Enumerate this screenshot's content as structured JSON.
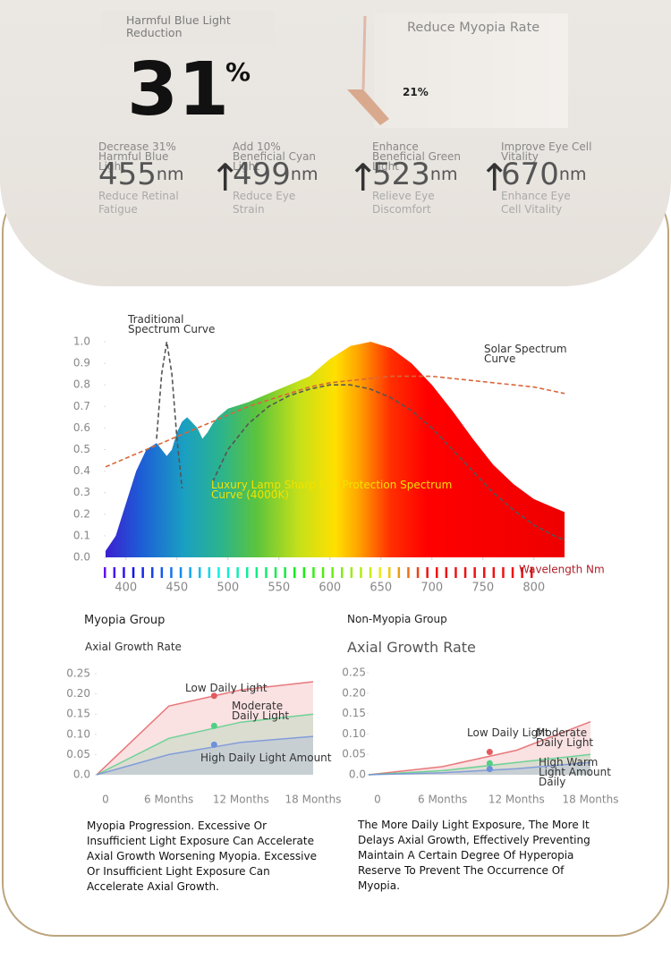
{
  "header": {
    "blue_light_label": "Harmful Blue Light Reduction",
    "blue_light_value": "31",
    "blue_light_unit": "%",
    "myopia_label": "Reduce Myopia Rate",
    "myopia_value": "21%",
    "wavelengths": [
      {
        "top": "Decrease 31% Harmful Blue Light",
        "value": "455",
        "unit": "nm",
        "bottom": "Reduce Retinal Fatigue"
      },
      {
        "top": "Add 10% Beneficial Cyan Light",
        "value": "499",
        "unit": "nm",
        "bottom": "Reduce Eye Strain"
      },
      {
        "top": "Enhance Beneficial Green Light",
        "value": "523",
        "unit": "nm",
        "bottom": "Relieve Eye Discomfort"
      },
      {
        "top": "Improve Eye Cell Vitality",
        "value": "670",
        "unit": "nm",
        "bottom": "Enhance Eye Cell Vitality"
      }
    ]
  },
  "chart_data": [
    {
      "type": "line",
      "x_label": "Wavelength Nm",
      "x": [
        380,
        390,
        400,
        410,
        420,
        430,
        435,
        440,
        445,
        450,
        455,
        460,
        470,
        475,
        480,
        485,
        490,
        500,
        520,
        540,
        560,
        580,
        600,
        620,
        640,
        660,
        680,
        700,
        720,
        740,
        760,
        780,
        800,
        820,
        830
      ],
      "xlim": [
        380,
        830
      ],
      "xticks": [
        400,
        450,
        500,
        550,
        600,
        650,
        700,
        750,
        800
      ],
      "ylim": [
        0,
        1
      ],
      "yticks": [
        {
          "value": 0,
          "label": "0.0"
        },
        0.1,
        0.2,
        0.3,
        0.4,
        0.5,
        0.6,
        0.7,
        0.8,
        0.9,
        {
          "value": 1,
          "label": "1.0"
        }
      ],
      "series": [
        {
          "name": "Luxury Lamp Sharp Eye Protection Spectrum Curve (4000K)",
          "color": "#f2e200",
          "fill": true,
          "values": [
            0.03,
            0.1,
            0.25,
            0.4,
            0.5,
            0.53,
            0.5,
            0.47,
            0.5,
            0.58,
            0.63,
            0.65,
            0.6,
            0.55,
            0.58,
            0.62,
            0.65,
            0.69,
            0.72,
            0.76,
            0.8,
            0.84,
            0.92,
            0.98,
            1.0,
            0.97,
            0.9,
            0.8,
            0.68,
            0.55,
            0.43,
            0.34,
            0.27,
            0.23,
            0.21
          ]
        },
        {
          "name": "Traditional Spectrum Curve",
          "color": "#555555",
          "dashed": true,
          "values": [
            null,
            null,
            null,
            null,
            null,
            0.55,
            0.85,
            1.0,
            0.85,
            0.55,
            0.32,
            null,
            null,
            null,
            null,
            0.35,
            0.4,
            0.5,
            0.62,
            0.7,
            0.75,
            0.78,
            0.8,
            0.8,
            0.78,
            0.74,
            0.68,
            0.6,
            0.5,
            0.4,
            0.3,
            0.22,
            0.15,
            0.1,
            0.08
          ]
        },
        {
          "name": "Solar Spectrum Curve",
          "color": "#d9663a",
          "dashed": true,
          "values": [
            0.42,
            0.44,
            0.46,
            0.48,
            0.5,
            0.52,
            0.53,
            0.54,
            0.55,
            0.56,
            0.57,
            0.58,
            0.6,
            0.61,
            0.62,
            0.63,
            0.64,
            0.66,
            0.7,
            0.73,
            0.76,
            0.79,
            0.81,
            0.82,
            0.83,
            0.84,
            0.84,
            0.84,
            0.83,
            0.82,
            0.81,
            0.8,
            0.79,
            0.77,
            0.76
          ]
        }
      ]
    },
    {
      "type": "line",
      "title": "Myopia Group",
      "y_label": "Axial Growth Rate",
      "categories": [
        "0",
        "6 Months",
        "12 Months",
        "18 Months"
      ],
      "ylim": [
        0,
        0.25
      ],
      "yticks": [
        {
          "value": 0,
          "label": "0.0"
        },
        0.05,
        {
          "value": 0.1,
          "label": "0.10"
        },
        0.15,
        {
          "value": 0.2,
          "label": "0.20"
        },
        0.25
      ],
      "series": [
        {
          "name": "Low Daily Light",
          "color": "#e25a5f",
          "values": [
            0,
            0.17,
            0.21,
            0.23
          ]
        },
        {
          "name": "Moderate Daily Light",
          "color": "#4fcf85",
          "values": [
            0,
            0.09,
            0.13,
            0.15
          ]
        },
        {
          "name": "High Daily Light Amount",
          "color": "#6f8fdc",
          "values": [
            0,
            0.05,
            0.08,
            0.095
          ]
        }
      ],
      "note": "Myopia Progression. Excessive Or Insufficient Light Exposure Can Accelerate Axial Growth Worsening Myopia. Excessive Or Insufficient Light Exposure Can Accelerate Axial Growth."
    },
    {
      "type": "line",
      "title": "Non-Myopia Group",
      "y_label": "Axial Growth Rate",
      "categories": [
        "0",
        "6 Months",
        "12 Months",
        "18 Months"
      ],
      "ylim": [
        0,
        0.25
      ],
      "yticks": [
        {
          "value": 0,
          "label": "0.0"
        },
        0.05,
        {
          "value": 0.1,
          "label": "0.10"
        },
        0.15,
        {
          "value": 0.2,
          "label": "0.20"
        },
        0.25
      ],
      "series": [
        {
          "name": "Low Daily Light",
          "color": "#e25a5f",
          "values": [
            0,
            0.02,
            0.06,
            0.13
          ]
        },
        {
          "name": "Moderate Daily Light",
          "color": "#4fcf85",
          "values": [
            0,
            0.01,
            0.03,
            0.05
          ]
        },
        {
          "name": "High Warm Light Amount Daily",
          "color": "#6f8fdc",
          "values": [
            0,
            0.005,
            0.015,
            0.03
          ]
        }
      ],
      "note": "The More Daily Light Exposure, The More It Delays Axial Growth, Effectively Preventing Maintain A Certain Degree Of Hyperopia Reserve To Prevent The Occurrence Of Myopia."
    }
  ]
}
